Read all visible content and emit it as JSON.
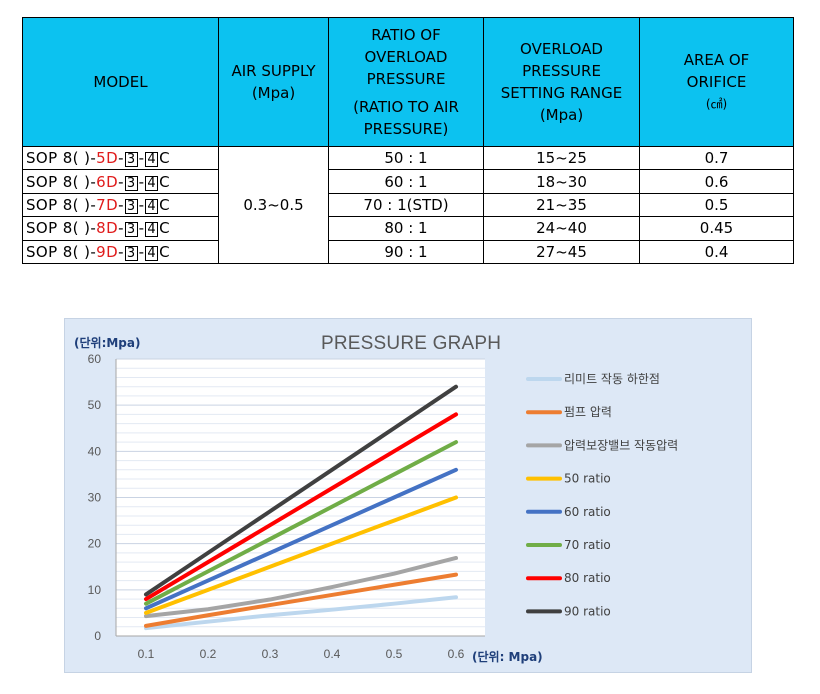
{
  "table": {
    "headers": {
      "model": "MODEL",
      "air_supply": [
        "AIR SUPPLY",
        "(Mpa)"
      ],
      "ratio": [
        "RATIO OF",
        "OVERLOAD",
        "PRESSURE"
      ],
      "ratio_sub": [
        "(RATIO TO AIR",
        "PRESSURE)"
      ],
      "setting_range": [
        "OVERLOAD",
        "PRESSURE",
        "SETTING RANGE",
        "(Mpa)"
      ],
      "orifice": [
        "AREA OF",
        "ORIFICE",
        "(㎠)"
      ]
    },
    "air_supply_value": "0.3~0.5",
    "rows": [
      {
        "model_prefix": "SOP 8( )-",
        "model_code": "5D",
        "box1": "3",
        "box2": "4",
        "suffix": "C",
        "ratio": "50 : 1",
        "range": "15~25",
        "orifice": "0.7"
      },
      {
        "model_prefix": "SOP 8( )-",
        "model_code": "6D",
        "box1": "3",
        "box2": "4",
        "suffix": "C",
        "ratio": "60 : 1",
        "range": "18~30",
        "orifice": "0.6"
      },
      {
        "model_prefix": "SOP 8( )-",
        "model_code": "7D",
        "box1": "3",
        "box2": "4",
        "suffix": "C",
        "ratio": "70 : 1(STD)",
        "range": "21~35",
        "orifice": "0.5"
      },
      {
        "model_prefix": "SOP 8( )-",
        "model_code": "8D",
        "box1": "3",
        "box2": "4",
        "suffix": "C",
        "ratio": "80 : 1",
        "range": "24~40",
        "orifice": "0.45"
      },
      {
        "model_prefix": "SOP 8( )-",
        "model_code": "9D",
        "box1": "3",
        "box2": "4",
        "suffix": "C",
        "ratio": "90 : 1",
        "range": "27~45",
        "orifice": "0.4"
      }
    ]
  },
  "chart_data": {
    "type": "line",
    "title": "PRESSURE GRAPH",
    "ylabel": "(단위:Mpa)",
    "xlabel": "(단위: Mpa)",
    "x": [
      0.1,
      0.2,
      0.3,
      0.4,
      0.5,
      0.6
    ],
    "x_tick_labels": [
      "0.1",
      "0.2",
      "0.3",
      "0.4",
      "0.5",
      "0.6"
    ],
    "ylim": [
      0,
      60
    ],
    "y_ticks": [
      0,
      10,
      20,
      30,
      40,
      50,
      60
    ],
    "grid": true,
    "legend_position": "right",
    "series": [
      {
        "name": "리미트 작동 하한점",
        "color": "#bdd7ee",
        "values": [
          1.7,
          3.1,
          4.5,
          5.7,
          7.0,
          8.4
        ]
      },
      {
        "name": "펌프 압력",
        "color": "#ed7d31",
        "values": [
          2.2,
          4.5,
          6.7,
          8.9,
          11.1,
          13.3
        ]
      },
      {
        "name": "압력보장밸브 작동압력",
        "color": "#a5a5a5",
        "values": [
          4.3,
          5.8,
          7.9,
          10.6,
          13.5,
          16.9
        ]
      },
      {
        "name": "50 ratio",
        "color": "#ffc000",
        "values": [
          5.0,
          10.0,
          15.0,
          20.0,
          25.0,
          30.0
        ]
      },
      {
        "name": "60 ratio",
        "color": "#4472c4",
        "values": [
          6.0,
          12.0,
          18.0,
          24.0,
          30.0,
          36.0
        ]
      },
      {
        "name": "70 ratio",
        "color": "#70ad47",
        "values": [
          7.0,
          14.0,
          21.0,
          28.0,
          35.0,
          42.0
        ]
      },
      {
        "name": "80 ratio",
        "color": "#ff0000",
        "values": [
          8.0,
          16.0,
          24.0,
          32.0,
          40.0,
          48.0
        ]
      },
      {
        "name": "90 ratio",
        "color": "#404040",
        "values": [
          9.0,
          18.0,
          27.0,
          36.0,
          45.0,
          54.0
        ]
      }
    ]
  }
}
